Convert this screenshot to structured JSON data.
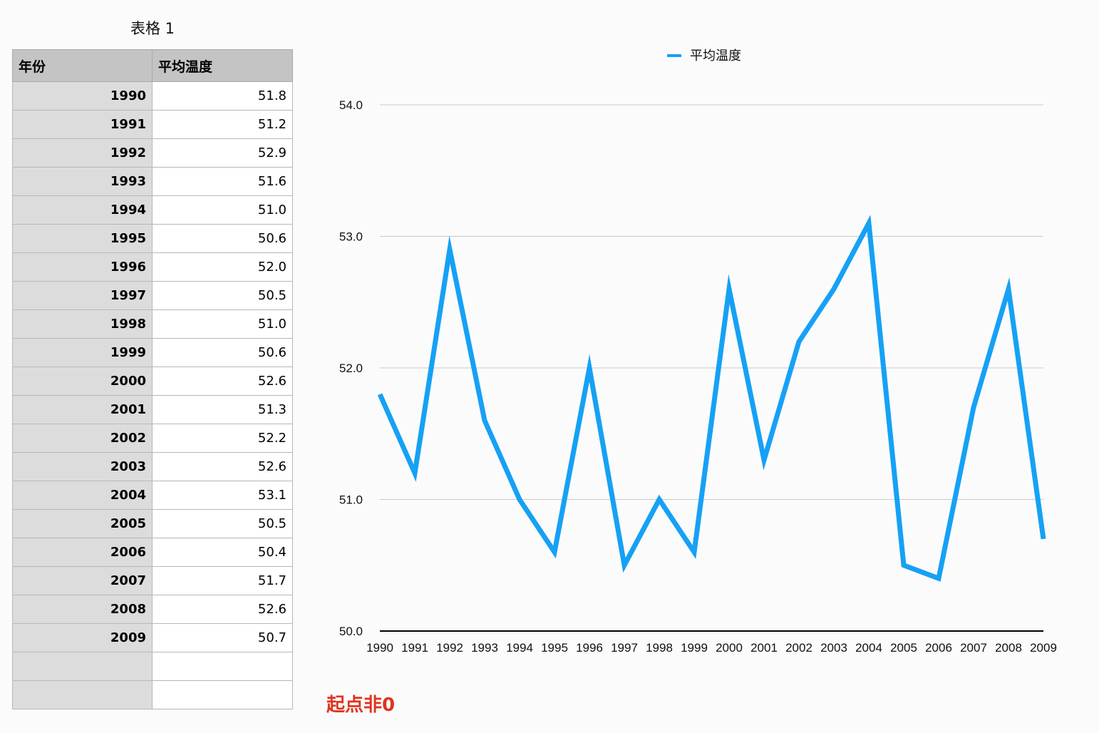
{
  "table": {
    "title": "表格 1",
    "headers": [
      "年份",
      "平均温度"
    ],
    "rows": [
      [
        "1990",
        "51.8"
      ],
      [
        "1991",
        "51.2"
      ],
      [
        "1992",
        "52.9"
      ],
      [
        "1993",
        "51.6"
      ],
      [
        "1994",
        "51.0"
      ],
      [
        "1995",
        "50.6"
      ],
      [
        "1996",
        "52.0"
      ],
      [
        "1997",
        "50.5"
      ],
      [
        "1998",
        "51.0"
      ],
      [
        "1999",
        "50.6"
      ],
      [
        "2000",
        "52.6"
      ],
      [
        "2001",
        "51.3"
      ],
      [
        "2002",
        "52.2"
      ],
      [
        "2003",
        "52.6"
      ],
      [
        "2004",
        "53.1"
      ],
      [
        "2005",
        "50.5"
      ],
      [
        "2006",
        "50.4"
      ],
      [
        "2007",
        "51.7"
      ],
      [
        "2008",
        "52.6"
      ],
      [
        "2009",
        "50.7"
      ],
      [
        "",
        ""
      ],
      [
        "",
        ""
      ]
    ]
  },
  "chart_data": {
    "type": "line",
    "title": "",
    "xlabel": "",
    "ylabel": "",
    "categories": [
      "1990",
      "1991",
      "1992",
      "1993",
      "1994",
      "1995",
      "1996",
      "1997",
      "1998",
      "1999",
      "2000",
      "2001",
      "2002",
      "2003",
      "2004",
      "2005",
      "2006",
      "2007",
      "2008",
      "2009"
    ],
    "series": [
      {
        "name": "平均温度",
        "color": "#16a1f5",
        "values": [
          51.8,
          51.2,
          52.9,
          51.6,
          51.0,
          50.6,
          52.0,
          50.5,
          51.0,
          50.6,
          52.6,
          51.3,
          52.2,
          52.6,
          53.1,
          50.5,
          50.4,
          51.7,
          52.6,
          50.7
        ]
      }
    ],
    "ylim": [
      50.0,
      54.0
    ],
    "yticks": [
      "50.0",
      "51.0",
      "52.0",
      "53.0",
      "54.0"
    ],
    "grid": true,
    "legend": "top-center"
  },
  "annotation": {
    "text": "起点非0",
    "color": "#e1331f"
  }
}
